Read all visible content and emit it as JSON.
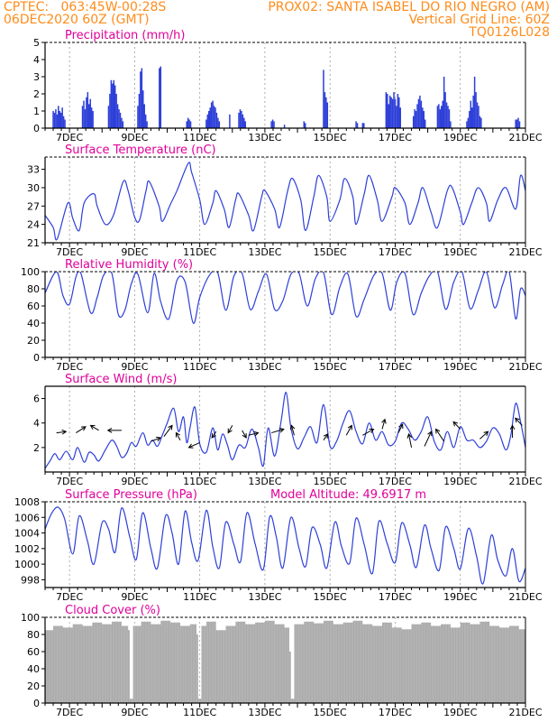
{
  "header": {
    "line1_left": "CPTEC:   063:45W-00:28S",
    "line1_right": "PROX02: SANTA ISABEL DO RIO NEGRO (AM)",
    "line2_left": "06DEC2020 60Z (GMT)",
    "line2_right": "Vertical Grid Line: 60Z",
    "line3_right": "TQ0126L028"
  },
  "colors": {
    "series": "#2d3fd8",
    "cloud": "#aaaaaa",
    "header": "#ff8c1a",
    "title": "#e0009a"
  },
  "chart_data": [
    {
      "type": "bar",
      "title": "Precipitation  (mm/h)",
      "ylim": [
        0,
        5
      ],
      "yticks": [
        0,
        1,
        2,
        3,
        4,
        5
      ],
      "x_range_days": [
        6.25,
        21.0
      ],
      "xtick_labels": [
        "7DEC",
        "9DEC",
        "11DEC",
        "13DEC",
        "15DEC",
        "17DEC",
        "19DEC",
        "21DEC"
      ],
      "vertical_grid": true,
      "x": [
        6.5,
        6.54,
        6.58,
        6.62,
        6.66,
        6.7,
        6.74,
        6.78,
        6.82,
        6.86,
        7.4,
        7.44,
        7.48,
        7.52,
        7.56,
        7.6,
        7.64,
        7.68,
        7.72,
        8.2,
        8.24,
        8.28,
        8.32,
        8.36,
        8.4,
        8.44,
        8.48,
        8.52,
        8.56,
        8.6,
        8.64,
        9.1,
        9.14,
        9.18,
        9.22,
        9.26,
        9.3,
        9.34,
        9.38,
        9.76,
        9.8,
        10.6,
        10.64,
        10.68,
        10.72,
        11.2,
        11.24,
        11.28,
        11.32,
        11.36,
        11.4,
        11.44,
        11.48,
        11.52,
        11.56,
        11.6,
        11.92,
        12.2,
        12.24,
        12.28,
        12.32,
        12.36,
        12.4,
        13.2,
        13.24,
        13.28,
        13.6,
        14.2,
        14.24,
        14.8,
        14.84,
        14.88,
        14.92,
        15.8,
        15.84,
        16.0,
        16.04,
        16.72,
        16.76,
        16.8,
        16.84,
        16.88,
        16.92,
        16.96,
        17.0,
        17.04,
        17.08,
        17.12,
        17.16,
        17.56,
        17.6,
        17.64,
        17.68,
        17.72,
        17.76,
        17.8,
        17.84,
        17.88,
        17.92,
        18.3,
        18.34,
        18.38,
        18.42,
        18.46,
        18.5,
        18.54,
        18.58,
        18.62,
        18.66,
        18.7,
        19.2,
        19.24,
        19.28,
        19.32,
        19.36,
        19.4,
        19.44,
        19.48,
        19.52,
        19.56,
        19.6,
        19.64,
        20.7,
        20.74,
        20.78,
        20.82
      ],
      "values": [
        1.0,
        0.9,
        1.1,
        0.8,
        1.3,
        1.0,
        0.9,
        1.2,
        0.7,
        0.5,
        1.3,
        1.6,
        1.1,
        1.8,
        2.1,
        1.4,
        1.7,
        1.2,
        1.0,
        1.3,
        2.0,
        2.8,
        2.6,
        2.8,
        2.5,
        2.0,
        1.4,
        1.1,
        0.9,
        0.6,
        0.4,
        1.3,
        2.0,
        3.3,
        3.5,
        2.2,
        1.4,
        0.8,
        0.4,
        3.5,
        3.6,
        0.4,
        0.6,
        0.5,
        0.4,
        0.5,
        0.8,
        1.0,
        1.2,
        1.5,
        1.6,
        1.3,
        1.2,
        0.9,
        0.6,
        0.4,
        0.8,
        0.9,
        1.1,
        1.0,
        0.8,
        0.6,
        0.4,
        0.4,
        0.5,
        0.4,
        0.2,
        0.4,
        0.3,
        3.4,
        2.1,
        1.8,
        1.5,
        0.4,
        0.3,
        0.3,
        0.3,
        2.1,
        2.0,
        1.4,
        1.9,
        1.8,
        1.7,
        2.1,
        1.7,
        1.3,
        2.0,
        1.8,
        1.2,
        0.7,
        1.1,
        1.0,
        1.4,
        1.7,
        1.9,
        1.6,
        1.2,
        1.0,
        0.5,
        1.3,
        1.4,
        1.1,
        1.3,
        1.6,
        3.0,
        2.1,
        1.5,
        1.3,
        1.1,
        0.4,
        0.4,
        0.6,
        1.0,
        1.6,
        1.2,
        1.9,
        3.0,
        2.1,
        1.5,
        1.3,
        0.7,
        0.6,
        0.5,
        0.5,
        0.6,
        0.4
      ]
    },
    {
      "type": "line",
      "title": "Surface Temperature (nC)",
      "ylim": [
        21,
        35
      ],
      "yticks": [
        21,
        24,
        27,
        30,
        33
      ],
      "x_range_days": [
        6.25,
        21.0
      ],
      "xtick_labels": [
        "7DEC",
        "9DEC",
        "11DEC",
        "13DEC",
        "15DEC",
        "17DEC",
        "19DEC",
        "21DEC"
      ],
      "vertical_grid": true,
      "x": [
        6.25,
        6.5,
        6.62,
        6.95,
        7.1,
        7.3,
        7.45,
        7.75,
        7.85,
        8.1,
        8.35,
        8.65,
        8.8,
        9.0,
        9.15,
        9.35,
        9.45,
        9.75,
        9.85,
        10.1,
        10.3,
        10.65,
        10.75,
        11.0,
        11.15,
        11.4,
        11.5,
        11.75,
        11.9,
        12.1,
        12.2,
        12.5,
        12.65,
        12.9,
        13.0,
        13.3,
        13.45,
        13.7,
        13.85,
        14.1,
        14.25,
        14.5,
        14.65,
        14.9,
        15.0,
        15.3,
        15.45,
        15.7,
        15.8,
        16.05,
        16.2,
        16.45,
        16.6,
        16.9,
        17.0,
        17.3,
        17.45,
        17.7,
        17.85,
        18.1,
        18.3,
        18.6,
        18.75,
        19.0,
        19.1,
        19.35,
        19.55,
        19.8,
        19.9,
        20.15,
        20.4,
        20.7,
        20.85,
        21.0
      ],
      "values": [
        25.5,
        23.5,
        21.6,
        27.5,
        25.0,
        23.0,
        27.5,
        29.0,
        27.0,
        24.0,
        25.5,
        31.0,
        29.5,
        25.2,
        24.7,
        29.5,
        31.0,
        27.0,
        24.5,
        27.3,
        29.5,
        34.0,
        32.5,
        28.0,
        24.0,
        27.5,
        29.5,
        26.5,
        23.5,
        28.0,
        29.0,
        25.5,
        23.0,
        28.5,
        29.5,
        26.5,
        23.5,
        29.5,
        31.5,
        28.0,
        23.0,
        28.5,
        32.0,
        28.5,
        24.5,
        28.0,
        31.5,
        28.5,
        24.0,
        29.0,
        32.0,
        28.0,
        24.5,
        28.5,
        30.0,
        27.5,
        24.0,
        27.5,
        30.0,
        26.0,
        23.5,
        29.5,
        30.0,
        26.0,
        24.0,
        27.5,
        30.0,
        27.5,
        24.5,
        28.0,
        30.0,
        26.5,
        32.0,
        29.5
      ]
    },
    {
      "type": "line",
      "title": "Relative Humidity (%)",
      "ylim": [
        0,
        100
      ],
      "yticks": [
        0,
        20,
        40,
        60,
        80,
        100
      ],
      "x_range_days": [
        6.25,
        21.0
      ],
      "xtick_labels": [
        "7DEC",
        "9DEC",
        "11DEC",
        "13DEC",
        "15DEC",
        "17DEC",
        "19DEC",
        "21DEC"
      ],
      "vertical_grid": true,
      "x": [
        6.25,
        6.6,
        6.8,
        7.0,
        7.2,
        7.35,
        7.65,
        7.85,
        8.05,
        8.3,
        8.5,
        8.7,
        8.9,
        9.1,
        9.4,
        9.6,
        9.8,
        10.05,
        10.3,
        10.55,
        10.8,
        11.0,
        11.3,
        11.55,
        11.8,
        12.05,
        12.3,
        12.55,
        12.8,
        13.05,
        13.3,
        13.55,
        13.8,
        14.05,
        14.3,
        14.55,
        14.8,
        15.05,
        15.3,
        15.55,
        15.8,
        16.05,
        16.35,
        16.6,
        16.85,
        17.05,
        17.3,
        17.55,
        17.8,
        18.05,
        18.3,
        18.55,
        18.8,
        19.05,
        19.3,
        19.55,
        19.8,
        20.05,
        20.3,
        20.5,
        20.7,
        20.85,
        21.0
      ],
      "values": [
        75,
        100,
        72,
        62,
        94,
        98,
        52,
        70,
        96,
        98,
        50,
        55,
        86,
        97,
        52,
        98,
        65,
        45,
        90,
        88,
        40,
        70,
        96,
        99,
        55,
        95,
        98,
        56,
        77,
        97,
        56,
        66,
        97,
        98,
        60,
        92,
        99,
        50,
        82,
        97,
        48,
        68,
        96,
        98,
        55,
        88,
        98,
        50,
        75,
        95,
        100,
        56,
        88,
        100,
        57,
        78,
        100,
        58,
        85,
        100,
        45,
        80,
        72
      ]
    },
    {
      "type": "line",
      "title": "Surface Wind (m/s)",
      "ylim": [
        0,
        7
      ],
      "yticks": [
        2,
        4,
        6
      ],
      "x_range_days": [
        6.25,
        21.0
      ],
      "xtick_labels": [
        "7DEC",
        "9DEC",
        "11DEC",
        "13DEC",
        "15DEC",
        "17DEC",
        "19DEC",
        "21DEC"
      ],
      "vertical_grid": true,
      "x": [
        6.25,
        6.4,
        6.55,
        6.7,
        6.9,
        7.1,
        7.25,
        7.45,
        7.6,
        7.75,
        7.9,
        8.1,
        8.3,
        8.45,
        8.6,
        8.75,
        8.9,
        9.05,
        9.25,
        9.4,
        9.55,
        9.7,
        9.85,
        10.0,
        10.2,
        10.35,
        10.5,
        10.6,
        10.7,
        10.85,
        11.0,
        11.2,
        11.4,
        11.55,
        11.7,
        11.85,
        12.0,
        12.2,
        12.4,
        12.6,
        12.8,
        12.95,
        13.1,
        13.3,
        13.5,
        13.65,
        13.8,
        14.0,
        14.2,
        14.4,
        14.6,
        14.8,
        15.0,
        15.2,
        15.4,
        15.6,
        15.8,
        16.0,
        16.2,
        16.4,
        16.6,
        16.8,
        17.0,
        17.2,
        17.4,
        17.6,
        17.8,
        18.0,
        18.2,
        18.4,
        18.6,
        18.8,
        19.0,
        19.2,
        19.4,
        19.6,
        19.8,
        20.0,
        20.2,
        20.4,
        20.55,
        20.7,
        20.85,
        21.0
      ],
      "values": [
        0.3,
        0.9,
        1.5,
        1.0,
        1.7,
        1.0,
        2.0,
        0.8,
        1.6,
        1.4,
        0.9,
        1.8,
        2.6,
        2.1,
        1.2,
        1.5,
        2.4,
        2.1,
        3.2,
        2.2,
        2.6,
        2.1,
        3.0,
        4.0,
        5.2,
        3.3,
        4.5,
        2.4,
        3.6,
        5.3,
        2.3,
        1.6,
        3.6,
        1.8,
        3.1,
        2.2,
        1.0,
        2.2,
        2.0,
        3.5,
        2.0,
        0.5,
        3.6,
        1.3,
        4.2,
        6.5,
        3.6,
        1.9,
        2.8,
        3.7,
        2.4,
        5.5,
        2.1,
        2.5,
        4.0,
        5.0,
        3.3,
        2.3,
        4.0,
        2.6,
        3.3,
        2.2,
        2.5,
        4.0,
        3.5,
        2.6,
        3.3,
        4.5,
        2.5,
        1.8,
        3.3,
        2.0,
        3.7,
        2.6,
        2.6,
        2.0,
        2.5,
        3.6,
        3.1,
        1.8,
        3.0,
        5.6,
        4.1,
        2.0
      ],
      "vectors": [
        {
          "x": 6.6,
          "y": 3.2,
          "dx": 0.7,
          "dy": 0.1
        },
        {
          "x": 7.2,
          "y": 3.2,
          "dx": 0.7,
          "dy": 0.5
        },
        {
          "x": 7.9,
          "y": 3.4,
          "dx": -0.6,
          "dy": 0.4
        },
        {
          "x": 8.6,
          "y": 3.4,
          "dx": -1.0,
          "dy": 0.0
        },
        {
          "x": 9.5,
          "y": 2.5,
          "dx": 0.7,
          "dy": 0.3
        },
        {
          "x": 9.9,
          "y": 2.9,
          "dx": 0.6,
          "dy": 0.9
        },
        {
          "x": 10.4,
          "y": 2.6,
          "dx": -0.3,
          "dy": 0.6
        },
        {
          "x": 11.0,
          "y": 2.4,
          "dx": -0.8,
          "dy": -0.4
        },
        {
          "x": 11.5,
          "y": 3.3,
          "dx": -0.3,
          "dy": -0.5
        },
        {
          "x": 12.0,
          "y": 3.8,
          "dx": -0.3,
          "dy": -0.6
        },
        {
          "x": 12.3,
          "y": 3.4,
          "dx": 0.3,
          "dy": -0.6
        },
        {
          "x": 12.5,
          "y": 3.0,
          "dx": 0.7,
          "dy": 0.2
        },
        {
          "x": 13.2,
          "y": 3.2,
          "dx": 0.9,
          "dy": 0.3
        },
        {
          "x": 13.9,
          "y": 3.0,
          "dx": -0.2,
          "dy": 0.8
        },
        {
          "x": 14.8,
          "y": 2.6,
          "dx": 0.3,
          "dy": 0.5
        },
        {
          "x": 15.5,
          "y": 3.0,
          "dx": 0.4,
          "dy": 0.8
        },
        {
          "x": 16.0,
          "y": 3.0,
          "dx": 0.8,
          "dy": 0.5
        },
        {
          "x": 16.6,
          "y": 3.5,
          "dx": 0.2,
          "dy": 0.8
        },
        {
          "x": 17.1,
          "y": 3.2,
          "dx": 0.3,
          "dy": 0.7
        },
        {
          "x": 17.5,
          "y": 2.0,
          "dx": -0.2,
          "dy": 1.1
        },
        {
          "x": 17.9,
          "y": 2.1,
          "dx": 0.5,
          "dy": 1.2
        },
        {
          "x": 18.5,
          "y": 2.5,
          "dx": -0.6,
          "dy": 1.0
        },
        {
          "x": 19.0,
          "y": 3.5,
          "dx": -0.5,
          "dy": 0.6
        },
        {
          "x": 19.6,
          "y": 2.7,
          "dx": 0.6,
          "dy": 0.6
        },
        {
          "x": 20.6,
          "y": 2.8,
          "dx": 0.0,
          "dy": 1.0
        },
        {
          "x": 20.9,
          "y": 3.8,
          "dx": -0.5,
          "dy": 0.6
        }
      ]
    },
    {
      "type": "line",
      "title": "Surface Pressure (hPa)",
      "annotation": "Model Altitude: 49.6917 m",
      "ylim": [
        997,
        1008
      ],
      "yticks": [
        998,
        1000,
        1002,
        1004,
        1006,
        1008
      ],
      "x_range_days": [
        6.25,
        21.0
      ],
      "xtick_labels": [
        "7DEC",
        "9DEC",
        "11DEC",
        "13DEC",
        "15DEC",
        "17DEC",
        "19DEC",
        "21DEC"
      ],
      "vertical_grid": true,
      "x": [
        6.25,
        6.45,
        6.65,
        6.85,
        7.1,
        7.3,
        7.55,
        7.75,
        8.0,
        8.2,
        8.4,
        8.6,
        8.85,
        9.05,
        9.25,
        9.5,
        9.7,
        9.95,
        10.15,
        10.35,
        10.55,
        10.75,
        10.95,
        11.2,
        11.4,
        11.6,
        11.8,
        12.05,
        12.25,
        12.45,
        12.7,
        12.95,
        13.15,
        13.35,
        13.55,
        13.8,
        14.05,
        14.25,
        14.45,
        14.7,
        14.9,
        15.15,
        15.35,
        15.6,
        15.8,
        16.05,
        16.3,
        16.5,
        16.75,
        17.0,
        17.2,
        17.45,
        17.65,
        17.9,
        18.1,
        18.35,
        18.55,
        18.8,
        19.0,
        19.25,
        19.5,
        19.7,
        19.95,
        20.15,
        20.4,
        20.6,
        20.8,
        21.0
      ],
      "values": [
        1004.5,
        1006.5,
        1007.3,
        1005.8,
        1001.3,
        1006.2,
        1003.0,
        1000.0,
        1005.3,
        1004.5,
        1001.5,
        1007.2,
        1003.5,
        1000.6,
        1006.6,
        1002.0,
        999.5,
        1006.2,
        1004.0,
        1000.0,
        1006.8,
        1002.8,
        1000.5,
        1006.9,
        1002.2,
        999.5,
        1005.4,
        1002.5,
        1000.3,
        1006.6,
        1002.6,
        999.3,
        1006.1,
        1003.5,
        999.5,
        1006.0,
        1002.0,
        999.7,
        1004.7,
        1002.5,
        999.5,
        1005.4,
        1002.3,
        1000.1,
        1005.9,
        1002.5,
        998.8,
        1005.5,
        1002.7,
        1000.2,
        1005.3,
        1002.5,
        999.6,
        1005.0,
        1002.0,
        999.2,
        1004.8,
        1002.0,
        999.4,
        1004.6,
        1001.0,
        997.5,
        1003.7,
        1000.5,
        998.5,
        1002.0,
        997.8,
        999.5
      ]
    },
    {
      "type": "area",
      "title": "Cloud Cover (%)",
      "ylim": [
        0,
        100
      ],
      "yticks": [
        0,
        20,
        40,
        60,
        80,
        100
      ],
      "x_range_days": [
        6.25,
        21.0
      ],
      "xtick_labels": [
        "7DEC",
        "9DEC",
        "11DEC",
        "13DEC",
        "15DEC",
        "17DEC",
        "19DEC",
        "21DEC"
      ],
      "vertical_grid": true,
      "x": [
        6.25,
        6.5,
        6.8,
        7.1,
        7.4,
        7.7,
        8.0,
        8.3,
        8.6,
        8.8,
        8.85,
        8.95,
        9.2,
        9.5,
        9.8,
        10.1,
        10.4,
        10.7,
        10.9,
        10.95,
        11.05,
        11.2,
        11.5,
        11.8,
        12.1,
        12.4,
        12.7,
        13.0,
        13.3,
        13.6,
        13.75,
        13.8,
        13.9,
        14.2,
        14.5,
        14.8,
        15.1,
        15.4,
        15.7,
        16.0,
        16.3,
        16.6,
        16.9,
        17.2,
        17.5,
        17.8,
        18.1,
        18.4,
        18.7,
        19.0,
        19.3,
        19.6,
        19.9,
        20.2,
        20.5,
        20.8,
        21.0
      ],
      "values": [
        85,
        90,
        88,
        92,
        90,
        94,
        92,
        95,
        90,
        85,
        5,
        90,
        95,
        92,
        96,
        94,
        90,
        92,
        80,
        5,
        90,
        95,
        85,
        90,
        95,
        92,
        94,
        96,
        92,
        88,
        60,
        5,
        92,
        95,
        93,
        96,
        92,
        94,
        96,
        92,
        90,
        94,
        88,
        86,
        92,
        94,
        90,
        92,
        88,
        94,
        92,
        95,
        90,
        88,
        90,
        86,
        88
      ]
    }
  ]
}
